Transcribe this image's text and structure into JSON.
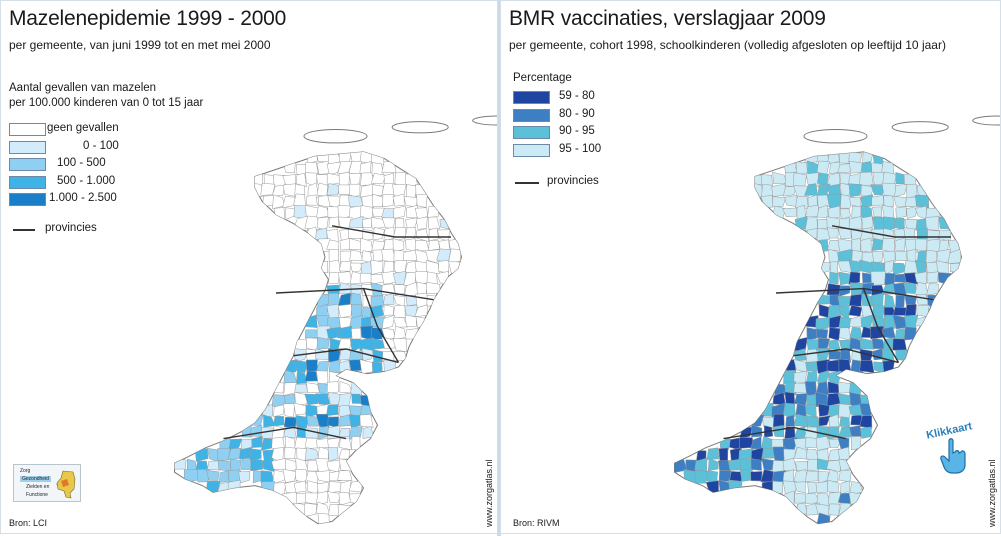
{
  "colors": {
    "background": "#ffffff",
    "white_municipality": "#ffffff",
    "border": "#9a9a9a",
    "province_line": "#333333",
    "map_left": [
      "#ffffff",
      "#d2ecfb",
      "#8fd0f2",
      "#3fb3e6",
      "#1a7fc8"
    ],
    "map_right": [
      "#1f45a0",
      "#3d7fc2",
      "#5cc0d9",
      "#cbeaf4"
    ]
  },
  "left": {
    "title": "Mazelenepidemie 1999 - 2000",
    "subtitle": "per gemeente, van juni 1999 tot en met mei 2000",
    "legend_title_line1": "Aantal gevallen van mazelen",
    "legend_title_line2": "per 100.000 kinderen van 0 tot 15 jaar",
    "legend_items": [
      {
        "label": "geen gevallen",
        "color": "#ffffff"
      },
      {
        "label": "0 -   100",
        "color": "#d2ecfb"
      },
      {
        "label": "100 -   500",
        "color": "#8fd0f2"
      },
      {
        "label": "500 - 1.000",
        "color": "#3fb3e6"
      },
      {
        "label": "1.000 - 2.500",
        "color": "#1a7fc8"
      }
    ],
    "provinces_label": "provincies",
    "source": "Bron: LCI",
    "website": "www.zorgatlas.nl",
    "nav": {
      "items": [
        "Zorg",
        "Gezondheid",
        "Ziekten en",
        "Functione"
      ]
    }
  },
  "right": {
    "title": "BMR vaccinaties, verslagjaar 2009",
    "subtitle": "per gemeente, cohort 1998, schoolkinderen (volledig afgesloten op leeftijd 10 jaar)",
    "legend_title": "Percentage",
    "legend_items": [
      {
        "label": "59 -   80",
        "color": "#1f45a0"
      },
      {
        "label": "80 -   90",
        "color": "#3d7fc2"
      },
      {
        "label": "90 -   95",
        "color": "#5cc0d9"
      },
      {
        "label": "95 - 100",
        "color": "#cbeaf4"
      }
    ],
    "provinces_label": "provincies",
    "source": "Bron: RIVM",
    "website": "www.zorgatlas.nl",
    "clickable_label": "Klikkaart",
    "clickable_icon": "pointing-hand-icon"
  }
}
